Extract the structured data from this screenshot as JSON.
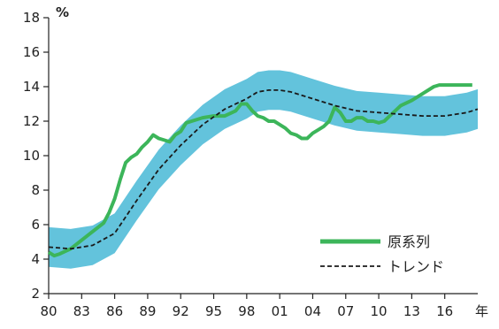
{
  "chart_data": {
    "type": "line",
    "ylabel_unit": "%",
    "xlabel_unit": "年",
    "ylim": [
      2,
      18
    ],
    "xlim": [
      1980,
      2019
    ],
    "y_ticks": [
      "2",
      "4",
      "6",
      "8",
      "10",
      "12",
      "14",
      "16",
      "18"
    ],
    "x_ticks": [
      {
        "year": 1980,
        "label": "80"
      },
      {
        "year": 1983,
        "label": "83"
      },
      {
        "year": 1986,
        "label": "86"
      },
      {
        "year": 1989,
        "label": "89"
      },
      {
        "year": 1992,
        "label": "92"
      },
      {
        "year": 1995,
        "label": "95"
      },
      {
        "year": 1998,
        "label": "98"
      },
      {
        "year": 2001,
        "label": "01"
      },
      {
        "year": 2004,
        "label": "04"
      },
      {
        "year": 2007,
        "label": "07"
      },
      {
        "year": 2010,
        "label": "10"
      },
      {
        "year": 2013,
        "label": "13"
      },
      {
        "year": 2016,
        "label": "16"
      }
    ],
    "legend": [
      "原系列",
      "トレンド"
    ],
    "legend_placement": "bottom-right",
    "colors": {
      "original": "#3cb55a",
      "trend": "#1a1a1a",
      "band": "#63c3dc"
    },
    "series": [
      {
        "name": "原系列",
        "x": [
          1980,
          1980.5,
          1981,
          1982,
          1983,
          1984,
          1985,
          1985.5,
          1986,
          1986.5,
          1987,
          1987.5,
          1988,
          1988.5,
          1989,
          1989.5,
          1990,
          1990.5,
          1991,
          1991.5,
          1992,
          1992.5,
          1993,
          1994,
          1995,
          1996,
          1997,
          1997.5,
          1998,
          1998.5,
          1999,
          1999.5,
          2000,
          2000.5,
          2001,
          2001.5,
          2002,
          2002.5,
          2003,
          2003.5,
          2004,
          2004.5,
          2005,
          2005.5,
          2006,
          2006.5,
          2007,
          2007.5,
          2008,
          2008.5,
          2009,
          2009.5,
          2010,
          2010.5,
          2011,
          2011.5,
          2012,
          2013,
          2014,
          2015,
          2015.5,
          2016,
          2016.5,
          2017,
          2017.5,
          2018,
          2018.5
        ],
        "values": [
          4.4,
          4.2,
          4.3,
          4.6,
          5.1,
          5.6,
          6.1,
          6.7,
          7.5,
          8.6,
          9.6,
          9.9,
          10.1,
          10.5,
          10.8,
          11.2,
          11.0,
          10.9,
          10.8,
          11.2,
          11.4,
          11.9,
          12.0,
          12.2,
          12.3,
          12.3,
          12.6,
          13.0,
          13.0,
          12.6,
          12.3,
          12.2,
          12.0,
          12.0,
          11.8,
          11.6,
          11.3,
          11.2,
          11.0,
          11.0,
          11.3,
          11.5,
          11.7,
          12.0,
          12.8,
          12.5,
          12.0,
          12.0,
          12.2,
          12.2,
          12.0,
          12.0,
          11.9,
          12.0,
          12.3,
          12.6,
          12.9,
          13.2,
          13.6,
          14.0,
          14.1,
          14.1,
          14.1,
          14.1,
          14.1,
          14.1,
          14.1
        ]
      },
      {
        "name": "トレンド",
        "x": [
          1980,
          1982,
          1984,
          1986,
          1988,
          1990,
          1992,
          1994,
          1996,
          1998,
          1999,
          2000,
          2001,
          2002,
          2004,
          2006,
          2008,
          2010,
          2012,
          2014,
          2016,
          2018,
          2019
        ],
        "values": [
          4.7,
          4.6,
          4.8,
          5.5,
          7.4,
          9.2,
          10.6,
          11.8,
          12.7,
          13.3,
          13.7,
          13.8,
          13.8,
          13.7,
          13.3,
          12.9,
          12.6,
          12.5,
          12.4,
          12.3,
          12.3,
          12.5,
          12.7
        ]
      }
    ],
    "band_halfwidth": 1.15
  }
}
